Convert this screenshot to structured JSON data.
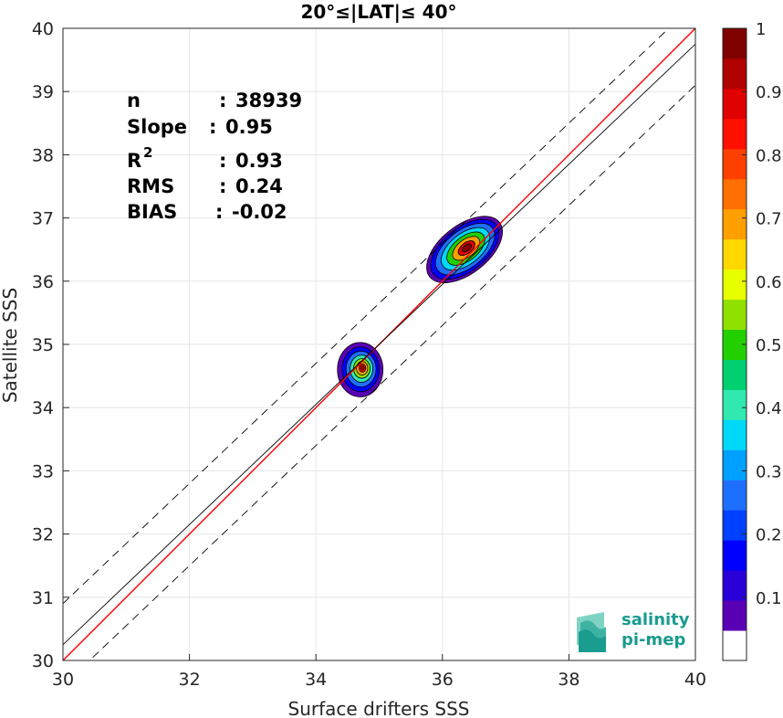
{
  "chart_data": {
    "type": "heatmap",
    "title": "20°≤|LAT|≤ 40°",
    "xlabel": "Surface drifters SSS",
    "ylabel": "Satellite SSS",
    "xlim": [
      30,
      40
    ],
    "ylim": [
      30,
      40
    ],
    "xticks": [
      "30",
      "32",
      "34",
      "36",
      "38",
      "40"
    ],
    "yticks": [
      "30",
      "31",
      "32",
      "33",
      "34",
      "35",
      "36",
      "37",
      "38",
      "39",
      "40"
    ],
    "grid": true,
    "stats": [
      {
        "label": "n",
        "sep": ":",
        "value": "38939"
      },
      {
        "label": "Slope",
        "sep": ":",
        "value": "0.95"
      },
      {
        "label": "R",
        "sup": "2",
        "sep": ":",
        "value": "0.93"
      },
      {
        "label": "RMS",
        "sep": ":",
        "value": "0.24"
      },
      {
        "label": "BIAS",
        "sep": ":",
        "value": "-0.02"
      }
    ],
    "lines": [
      {
        "role": "1:1 line",
        "color": "#ff0000",
        "x": [
          30,
          40
        ],
        "y": [
          30,
          40
        ],
        "style": "solid"
      },
      {
        "role": "regression fit",
        "color": "#000000",
        "x": [
          30,
          40
        ],
        "y": [
          30.25,
          39.75
        ],
        "style": "solid"
      },
      {
        "role": "upper bound",
        "color": "#000000",
        "x": [
          30,
          40
        ],
        "y": [
          30.9,
          40.4
        ],
        "style": "dashed"
      },
      {
        "role": "lower bound",
        "color": "#000000",
        "x": [
          30,
          40
        ],
        "y": [
          29.6,
          39.1
        ],
        "style": "dashed"
      }
    ],
    "clusters": [
      {
        "cx": 36.35,
        "cy": 36.5,
        "ang": 38,
        "a": 0.7,
        "b": 0.38,
        "peak": 1.0,
        "levels": [
          [
            0.05,
            1.0
          ],
          [
            0.15,
            0.9
          ],
          [
            0.25,
            0.78
          ],
          [
            0.35,
            0.64
          ],
          [
            0.5,
            0.5
          ],
          [
            0.7,
            0.36
          ],
          [
            0.9,
            0.22
          ],
          [
            1.0,
            0.12
          ]
        ]
      },
      {
        "cx": 34.7,
        "cy": 34.6,
        "ang": 0,
        "a": 0.36,
        "b": 0.43,
        "peak": 0.95,
        "levels": [
          [
            0.05,
            1.0
          ],
          [
            0.15,
            0.82
          ],
          [
            0.25,
            0.66
          ],
          [
            0.4,
            0.5
          ],
          [
            0.55,
            0.36
          ],
          [
            0.7,
            0.25
          ],
          [
            0.85,
            0.15
          ],
          [
            0.95,
            0.08
          ]
        ]
      }
    ],
    "colorbar": {
      "range": [
        0,
        1
      ],
      "ticks": [
        "0.1",
        "0.2",
        "0.3",
        "0.4",
        "0.5",
        "0.6",
        "0.7",
        "0.8",
        "0.9",
        "1"
      ],
      "colors": [
        "#ffffff",
        "#5a00b4",
        "#2a00d8",
        "#0000ff",
        "#0040ff",
        "#1f6fff",
        "#00a0ff",
        "#00d8f8",
        "#30e8b0",
        "#00d070",
        "#22d000",
        "#90e000",
        "#e8ff00",
        "#ffd800",
        "#ffa000",
        "#ff7000",
        "#ff4000",
        "#ff1000",
        "#e00000",
        "#b00000",
        "#800000"
      ]
    }
  },
  "logo": {
    "line1": "salinity",
    "line2": "pi-mep"
  }
}
